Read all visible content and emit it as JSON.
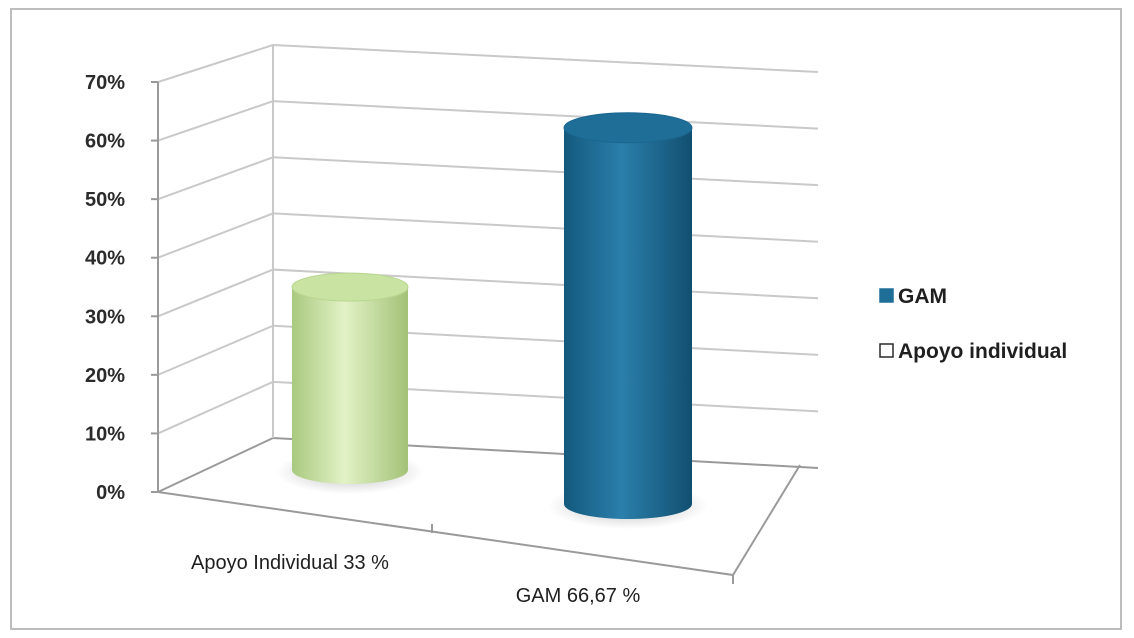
{
  "chart_data": {
    "type": "bar",
    "style": "3d-cylinder",
    "categories": [
      "Apoyo Individual 33  %",
      "GAM  66,67 %"
    ],
    "series": [
      {
        "name": "Apoyo individual",
        "category_index": 0,
        "value": 33,
        "color": "#c9e3a2"
      },
      {
        "name": "GAM",
        "category_index": 1,
        "value": 66.67,
        "color": "#1f6e97"
      }
    ],
    "ylim": [
      0,
      70
    ],
    "y_ticks": [
      0,
      10,
      20,
      30,
      40,
      50,
      60,
      70
    ],
    "y_tick_labels": [
      "0%",
      "10%",
      "20%",
      "30%",
      "40%",
      "50%",
      "60%",
      "70%"
    ],
    "grid": true,
    "legend": {
      "position": "right",
      "entries": [
        {
          "label": "GAM",
          "color": "#1f6e97"
        },
        {
          "label": "Apoyo individual",
          "color": "#ffffff"
        }
      ]
    }
  }
}
